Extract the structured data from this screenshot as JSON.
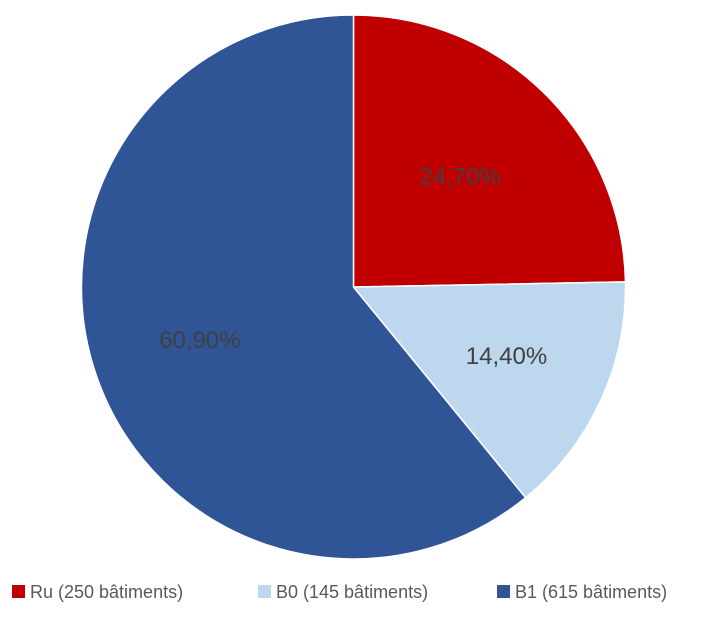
{
  "chart_data": {
    "type": "pie",
    "title": "",
    "start_angle_deg": 0,
    "direction": "clockwise",
    "legend_position": "bottom",
    "slices": [
      {
        "legend": "Ru (250 bâtiments)",
        "label": "24,70%",
        "value": 24.7,
        "color": "#c00000"
      },
      {
        "legend": "B0 (145 bâtiments)",
        "label": "14,40%",
        "value": 14.4,
        "color": "#bdd7ee"
      },
      {
        "legend": "B1 (615 bâtiments)",
        "label": "60,90%",
        "value": 60.9,
        "color": "#2f5597"
      }
    ]
  }
}
